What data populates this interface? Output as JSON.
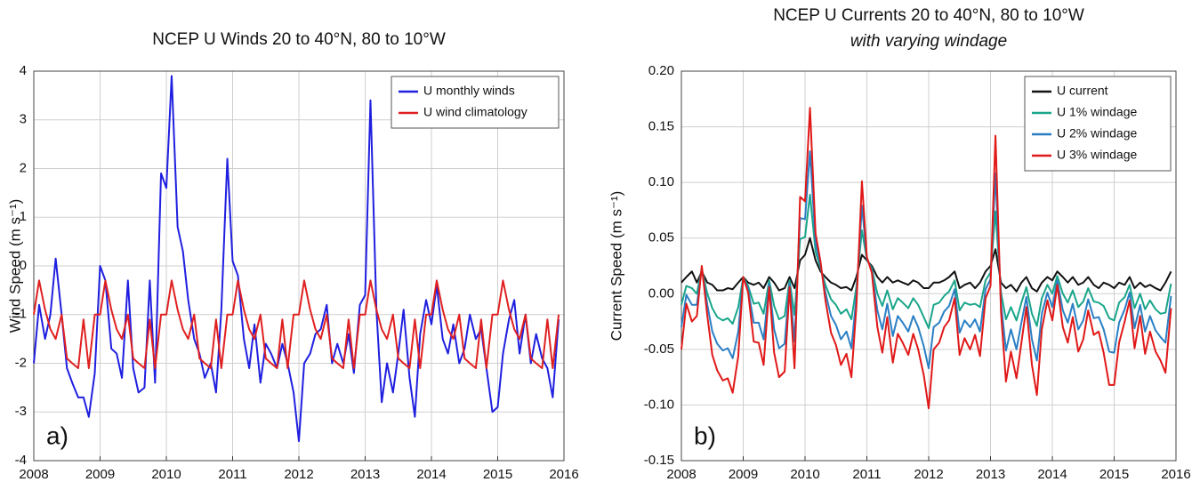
{
  "chart_data": [
    {
      "type": "line",
      "title": "NCEP U Winds 20 to 40°N, 80 to 10°W",
      "y_label": "Wind Speed (m s⁻¹)",
      "annotation": "a)",
      "xlim": [
        2008,
        2016
      ],
      "xticks": [
        2008,
        2009,
        2010,
        2011,
        2012,
        2013,
        2014,
        2015,
        2016
      ],
      "ylim": [
        -4,
        4
      ],
      "yticks": [
        -4,
        -3,
        -2,
        -1,
        0,
        1,
        2,
        3,
        4
      ],
      "grid": true,
      "legend": "upper right",
      "x": [
        2008,
        2008.08,
        2008.17,
        2008.25,
        2008.33,
        2008.42,
        2008.5,
        2008.58,
        2008.67,
        2008.75,
        2008.83,
        2008.92,
        2009,
        2009.08,
        2009.17,
        2009.25,
        2009.33,
        2009.42,
        2009.5,
        2009.58,
        2009.67,
        2009.75,
        2009.83,
        2009.92,
        2010,
        2010.08,
        2010.17,
        2010.25,
        2010.33,
        2010.42,
        2010.5,
        2010.58,
        2010.67,
        2010.75,
        2010.83,
        2010.92,
        2011,
        2011.08,
        2011.17,
        2011.25,
        2011.33,
        2011.42,
        2011.5,
        2011.58,
        2011.67,
        2011.75,
        2011.83,
        2011.92,
        2012,
        2012.08,
        2012.17,
        2012.25,
        2012.33,
        2012.42,
        2012.5,
        2012.58,
        2012.67,
        2012.75,
        2012.83,
        2012.92,
        2013,
        2013.08,
        2013.17,
        2013.25,
        2013.33,
        2013.42,
        2013.5,
        2013.58,
        2013.67,
        2013.75,
        2013.83,
        2013.92,
        2014,
        2014.08,
        2014.17,
        2014.25,
        2014.33,
        2014.42,
        2014.5,
        2014.58,
        2014.67,
        2014.75,
        2014.83,
        2014.92,
        2015,
        2015.08,
        2015.17,
        2015.25,
        2015.33,
        2015.42,
        2015.5,
        2015.58,
        2015.67,
        2015.75,
        2015.83,
        2015.92
      ],
      "series": [
        {
          "name": "U monthly winds",
          "color": "#1f1fe0",
          "values": [
            -2,
            -0.8,
            -1.5,
            -1,
            0.15,
            -1,
            -2.1,
            -2.4,
            -2.7,
            -2.7,
            -3.1,
            -2.2,
            0,
            -0.3,
            -1.7,
            -1.8,
            -2.3,
            -0.3,
            -2.1,
            -2.6,
            -2.5,
            -0.3,
            -2.4,
            1.9,
            1.6,
            3.9,
            0.8,
            0.3,
            -0.7,
            -1.5,
            -1.8,
            -2.3,
            -2.0,
            -2.6,
            -0.9,
            2.2,
            0.1,
            -0.2,
            -1.5,
            -2.1,
            -1.2,
            -2.4,
            -1.6,
            -1.8,
            -2.1,
            -1.6,
            -2.0,
            -2.6,
            -3.6,
            -2.0,
            -1.8,
            -1.4,
            -1.3,
            -0.8,
            -2.0,
            -1.6,
            -2.0,
            -1.4,
            -2.2,
            -0.8,
            -0.6,
            3.4,
            -0.9,
            -2.8,
            -2.0,
            -2.6,
            -1.8,
            -0.9,
            -2.3,
            -3.1,
            -1.4,
            -0.7,
            -1.2,
            -0.4,
            -1.5,
            -1.8,
            -1.2,
            -2.0,
            -1.7,
            -1.0,
            -1.5,
            -1.3,
            -2.1,
            -3.0,
            -2.9,
            -1.8,
            -1.1,
            -0.7,
            -1.8,
            -1.0,
            -2.0,
            -1.4,
            -1.9,
            -2.1,
            -2.7,
            -1.1
          ]
        },
        {
          "name": "U wind climatology",
          "color": "#e02020",
          "values": [
            -1.0,
            -0.3,
            -0.9,
            -1.3,
            -1.5,
            -1.0,
            -1.9,
            -2.0,
            -2.1,
            -1.1,
            -2.1,
            -1.0,
            -1.0,
            -0.3,
            -0.9,
            -1.3,
            -1.5,
            -1.0,
            -1.9,
            -2.0,
            -2.1,
            -1.1,
            -2.1,
            -1.0,
            -1.0,
            -0.3,
            -0.9,
            -1.3,
            -1.5,
            -1.0,
            -1.9,
            -2.0,
            -2.1,
            -1.1,
            -2.1,
            -1.0,
            -1.0,
            -0.3,
            -0.9,
            -1.3,
            -1.5,
            -1.0,
            -1.9,
            -2.0,
            -2.1,
            -1.1,
            -2.1,
            -1.0,
            -1.0,
            -0.3,
            -0.9,
            -1.3,
            -1.5,
            -1.0,
            -1.9,
            -2.0,
            -2.1,
            -1.1,
            -2.1,
            -1.0,
            -1.0,
            -0.3,
            -0.9,
            -1.3,
            -1.5,
            -1.0,
            -1.9,
            -2.0,
            -2.1,
            -1.1,
            -2.1,
            -1.0,
            -1.0,
            -0.3,
            -0.9,
            -1.3,
            -1.5,
            -1.0,
            -1.9,
            -2.0,
            -2.1,
            -1.1,
            -2.1,
            -1.0,
            -1.0,
            -0.3,
            -0.9,
            -1.3,
            -1.5,
            -1.0,
            -1.9,
            -2.0,
            -2.1,
            -1.1,
            -2.1,
            -1.0
          ]
        }
      ]
    },
    {
      "type": "line",
      "title": "NCEP U Currents 20 to 40°N, 80 to 10°W",
      "subtitle": "with varying windage",
      "y_label": "Current Speed (m s⁻¹)",
      "annotation": "b)",
      "xlim": [
        2008,
        2016
      ],
      "xticks": [
        2008,
        2009,
        2010,
        2011,
        2012,
        2013,
        2014,
        2015,
        2016
      ],
      "ylim": [
        -0.15,
        0.2
      ],
      "yticks": [
        -0.15,
        {
          "value": -0.1,
          "label": "-0.10"
        },
        -0.05,
        {
          "value": 0,
          "label": "0.00"
        },
        0.05,
        {
          "value": 0.1,
          "label": "0.10"
        },
        0.15,
        {
          "value": 0.2,
          "label": "0.20"
        }
      ],
      "grid": true,
      "legend": "upper right",
      "x": [
        2008,
        2008.08,
        2008.17,
        2008.25,
        2008.33,
        2008.42,
        2008.5,
        2008.58,
        2008.67,
        2008.75,
        2008.83,
        2008.92,
        2009,
        2009.08,
        2009.17,
        2009.25,
        2009.33,
        2009.42,
        2009.5,
        2009.58,
        2009.67,
        2009.75,
        2009.83,
        2009.92,
        2010,
        2010.08,
        2010.17,
        2010.25,
        2010.33,
        2010.42,
        2010.5,
        2010.58,
        2010.67,
        2010.75,
        2010.83,
        2010.92,
        2011,
        2011.08,
        2011.17,
        2011.25,
        2011.33,
        2011.42,
        2011.5,
        2011.58,
        2011.67,
        2011.75,
        2011.83,
        2011.92,
        2012,
        2012.08,
        2012.17,
        2012.25,
        2012.33,
        2012.42,
        2012.5,
        2012.58,
        2012.67,
        2012.75,
        2012.83,
        2012.92,
        2013,
        2013.08,
        2013.17,
        2013.25,
        2013.33,
        2013.42,
        2013.5,
        2013.58,
        2013.67,
        2013.75,
        2013.83,
        2013.92,
        2014,
        2014.08,
        2014.17,
        2014.25,
        2014.33,
        2014.42,
        2014.5,
        2014.58,
        2014.67,
        2014.75,
        2014.83,
        2014.92,
        2015,
        2015.08,
        2015.17,
        2015.25,
        2015.33,
        2015.42,
        2015.5,
        2015.58,
        2015.67,
        2015.75,
        2015.83,
        2015.92
      ],
      "series": [
        {
          "name": "U current",
          "color": "#111111",
          "values": [
            0.01,
            0.015,
            0.02,
            0.01,
            0.02,
            0.01,
            0.008,
            0.003,
            0.003,
            0.005,
            0.004,
            0.01,
            0.015,
            0.01,
            0.008,
            0.01,
            0.005,
            0.015,
            0.01,
            0.003,
            0.005,
            0.015,
            0.005,
            0.03,
            0.035,
            0.05,
            0.03,
            0.02,
            0.015,
            0.01,
            0.008,
            0.005,
            0.006,
            0.003,
            0.015,
            0.035,
            0.03,
            0.025,
            0.015,
            0.01,
            0.015,
            0.01,
            0.012,
            0.01,
            0.008,
            0.012,
            0.01,
            0.005,
            0.005,
            0.01,
            0.01,
            0.012,
            0.015,
            0.02,
            0.005,
            0.008,
            0.01,
            0.005,
            0.01,
            0.02,
            0.025,
            0.04,
            0.01,
            0.005,
            0.008,
            0.002,
            0.01,
            0.015,
            0.005,
            0.002,
            0.01,
            0.015,
            0.012,
            0.02,
            0.015,
            0.01,
            0.015,
            0.008,
            0.01,
            0.015,
            0.008,
            0.005,
            0.01,
            0.008,
            0.005,
            0.01,
            0.008,
            0.015,
            0.005,
            0.01,
            0.006,
            0.008,
            0.005,
            0.003,
            0.01,
            0.02
          ]
        },
        {
          "name": "U 1% windage",
          "color": "#19a58a",
          "values": [
            -0.01,
            0.007,
            0.005,
            0,
            0.022,
            0,
            -0.013,
            -0.021,
            -0.024,
            -0.022,
            -0.027,
            -0.012,
            0.015,
            0.007,
            -0.009,
            -0.008,
            -0.018,
            0.012,
            -0.011,
            -0.023,
            -0.02,
            0.012,
            -0.019,
            0.049,
            0.051,
            0.089,
            0.038,
            0.023,
            0.008,
            -0.005,
            -0.01,
            -0.018,
            -0.014,
            -0.023,
            0.006,
            0.057,
            0.031,
            0.023,
            0,
            -0.011,
            0.003,
            -0.014,
            -0.004,
            -0.008,
            -0.013,
            -0.004,
            -0.01,
            -0.021,
            -0.031,
            -0.01,
            -0.008,
            -0.002,
            0.002,
            0.012,
            -0.015,
            -0.008,
            -0.01,
            -0.009,
            -0.012,
            0.012,
            0.019,
            0.074,
            0.001,
            -0.023,
            -0.012,
            -0.024,
            -0.008,
            0.006,
            -0.018,
            -0.029,
            -0.004,
            0.008,
            0,
            0.016,
            0,
            -0.008,
            0.003,
            -0.012,
            -0.007,
            0.005,
            -0.007,
            -0.008,
            -0.011,
            -0.022,
            -0.024,
            -0.008,
            -0.003,
            0.008,
            -0.013,
            0,
            -0.014,
            -0.006,
            -0.014,
            -0.018,
            -0.017,
            0.009
          ]
        },
        {
          "name": "U 2% windage",
          "color": "#2a7fc4",
          "values": [
            -0.03,
            -0.001,
            -0.01,
            -0.01,
            0.023,
            -0.01,
            -0.034,
            -0.045,
            -0.051,
            -0.049,
            -0.058,
            -0.034,
            0.015,
            0.004,
            -0.026,
            -0.026,
            -0.041,
            0.009,
            -0.032,
            -0.049,
            -0.045,
            0.009,
            -0.043,
            0.068,
            0.067,
            0.128,
            0.046,
            0.026,
            0.001,
            -0.02,
            -0.028,
            -0.041,
            -0.034,
            -0.049,
            -0.003,
            0.079,
            0.032,
            0.021,
            -0.015,
            -0.032,
            -0.009,
            -0.038,
            -0.02,
            -0.026,
            -0.034,
            -0.02,
            -0.03,
            -0.047,
            -0.067,
            -0.03,
            -0.026,
            -0.016,
            -0.011,
            0.004,
            -0.035,
            -0.024,
            -0.03,
            -0.023,
            -0.034,
            0.004,
            0.013,
            0.108,
            -0.008,
            -0.051,
            -0.032,
            -0.05,
            -0.026,
            -0.003,
            -0.041,
            -0.06,
            -0.018,
            0.001,
            -0.012,
            0.012,
            -0.015,
            -0.026,
            -0.009,
            -0.032,
            -0.024,
            -0.005,
            -0.022,
            -0.021,
            -0.032,
            -0.052,
            -0.053,
            -0.026,
            -0.014,
            0.001,
            -0.031,
            -0.01,
            -0.034,
            -0.02,
            -0.033,
            -0.039,
            -0.044,
            -0.002
          ]
        },
        {
          "name": "U 3% windage",
          "color": "#e01818",
          "values": [
            -0.05,
            -0.009,
            -0.025,
            -0.02,
            0.025,
            -0.02,
            -0.055,
            -0.069,
            -0.078,
            -0.076,
            -0.089,
            -0.056,
            0.015,
            0.001,
            -0.043,
            -0.044,
            -0.064,
            0.006,
            -0.053,
            -0.075,
            -0.07,
            0.006,
            -0.067,
            0.087,
            0.083,
            0.167,
            0.054,
            0.029,
            -0.006,
            -0.035,
            -0.046,
            -0.064,
            -0.054,
            -0.075,
            -0.012,
            0.101,
            0.033,
            0.019,
            -0.03,
            -0.053,
            -0.021,
            -0.062,
            -0.036,
            -0.044,
            -0.055,
            -0.036,
            -0.05,
            -0.073,
            -0.103,
            -0.05,
            -0.044,
            -0.03,
            -0.024,
            -0.004,
            -0.055,
            -0.04,
            -0.05,
            -0.037,
            -0.056,
            -0.004,
            0.007,
            0.142,
            -0.017,
            -0.079,
            -0.052,
            -0.076,
            -0.044,
            -0.012,
            -0.064,
            -0.091,
            -0.032,
            -0.006,
            -0.024,
            0.008,
            -0.03,
            -0.044,
            -0.021,
            -0.052,
            -0.041,
            -0.015,
            -0.037,
            -0.034,
            -0.053,
            -0.082,
            -0.082,
            -0.044,
            -0.025,
            -0.006,
            -0.049,
            -0.02,
            -0.054,
            -0.034,
            -0.052,
            -0.06,
            -0.071,
            -0.013
          ]
        }
      ]
    }
  ]
}
